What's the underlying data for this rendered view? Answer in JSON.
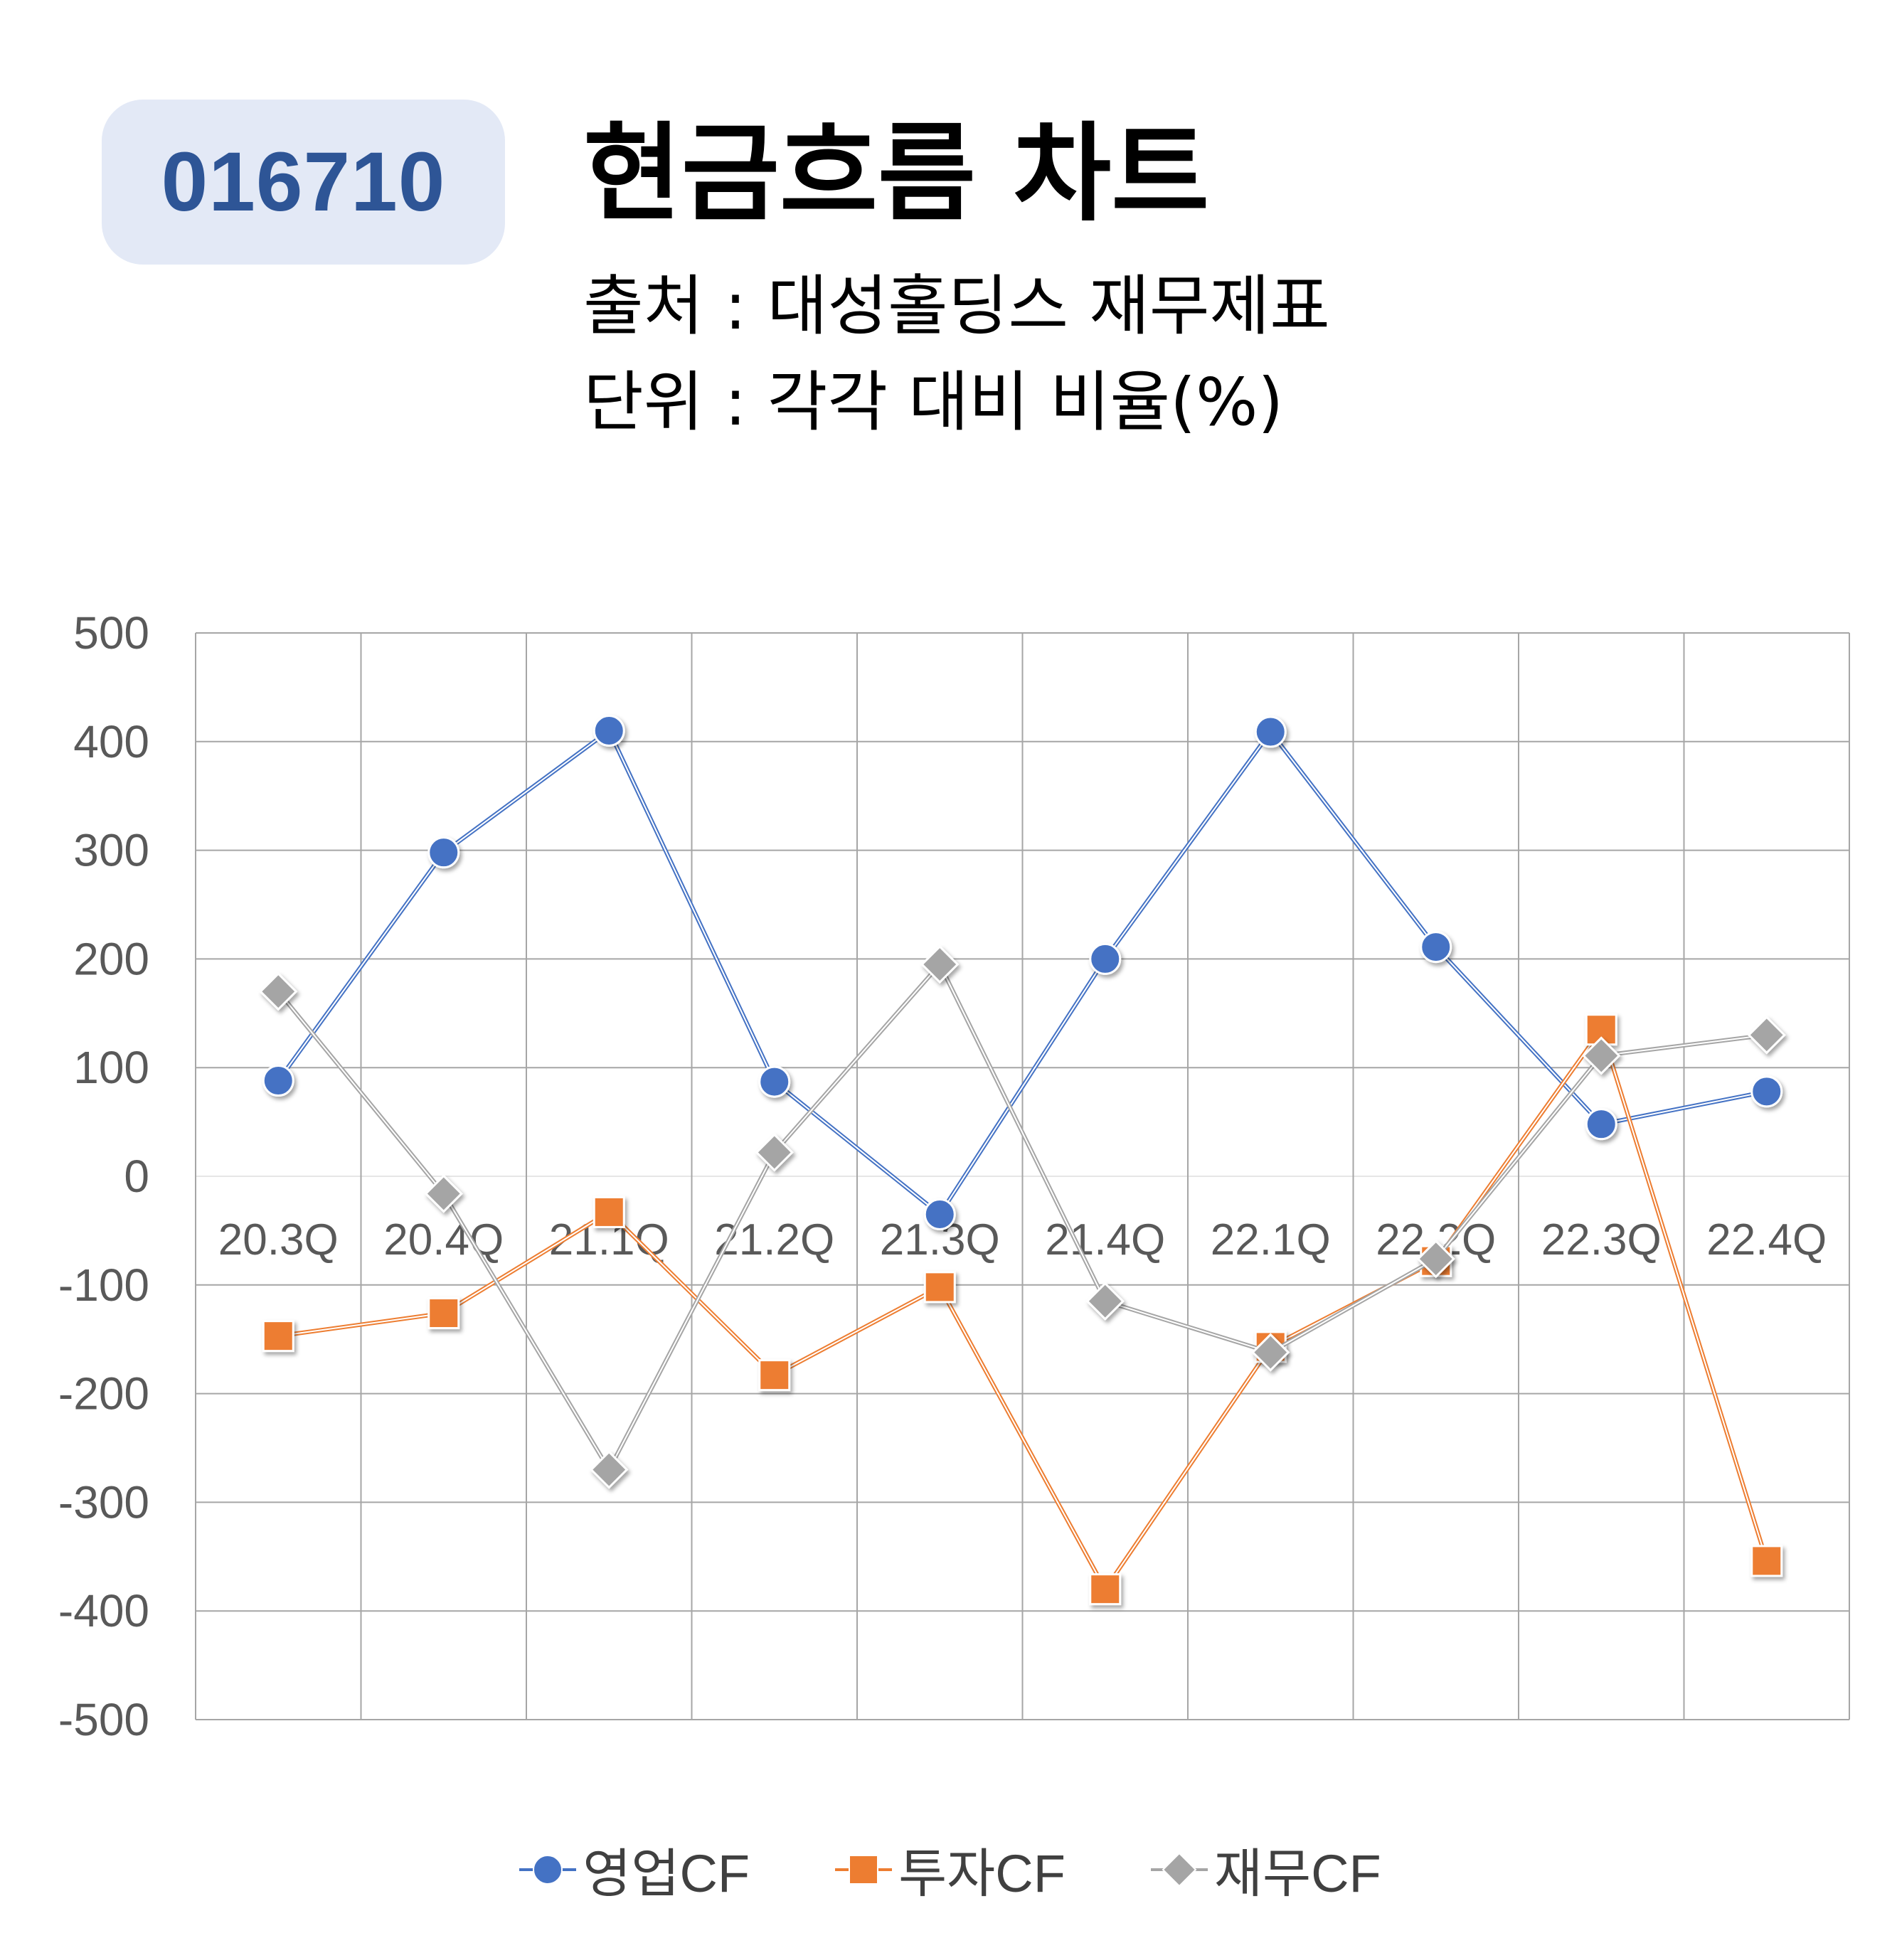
{
  "header": {
    "code": "016710",
    "title": "현금흐름 차트",
    "source": "출처 : 대성홀딩스 재무제표",
    "unit": "단위 : 각각 대비 비율(%)"
  },
  "colors": {
    "badge_bg": "#e3e9f6",
    "badge_text": "#2e5596",
    "operating": "#4472c4",
    "investing": "#ed7d31",
    "financing": "#a5a5a5",
    "grid": "#a6a6a6"
  },
  "chart_data": {
    "type": "line",
    "categories": [
      "20.3Q",
      "20.4Q",
      "21.1Q",
      "21.2Q",
      "21.3Q",
      "21.4Q",
      "22.1Q",
      "22.2Q",
      "22.3Q",
      "22.4Q"
    ],
    "ylim": [
      -500,
      500
    ],
    "yticks": [
      "500",
      "400",
      "300",
      "200",
      "100",
      "0",
      "-100",
      "-200",
      "-300",
      "-400",
      "-500"
    ],
    "grid": true,
    "legend_position": "bottom",
    "series": [
      {
        "name": "영업CF",
        "marker": "circle",
        "color": "#4472c4",
        "values": [
          88,
          298,
          410,
          87,
          -35,
          200,
          409,
          211,
          48,
          78
        ]
      },
      {
        "name": "투자CF",
        "marker": "square",
        "color": "#ed7d31",
        "values": [
          -147,
          -126,
          -33,
          -183,
          -102,
          -380,
          -157,
          -78,
          135,
          -354
        ]
      },
      {
        "name": "재무CF",
        "marker": "diamond",
        "color": "#a5a5a5",
        "values": [
          170,
          -16,
          -270,
          22,
          195,
          -115,
          -162,
          -76,
          111,
          130
        ]
      }
    ]
  }
}
